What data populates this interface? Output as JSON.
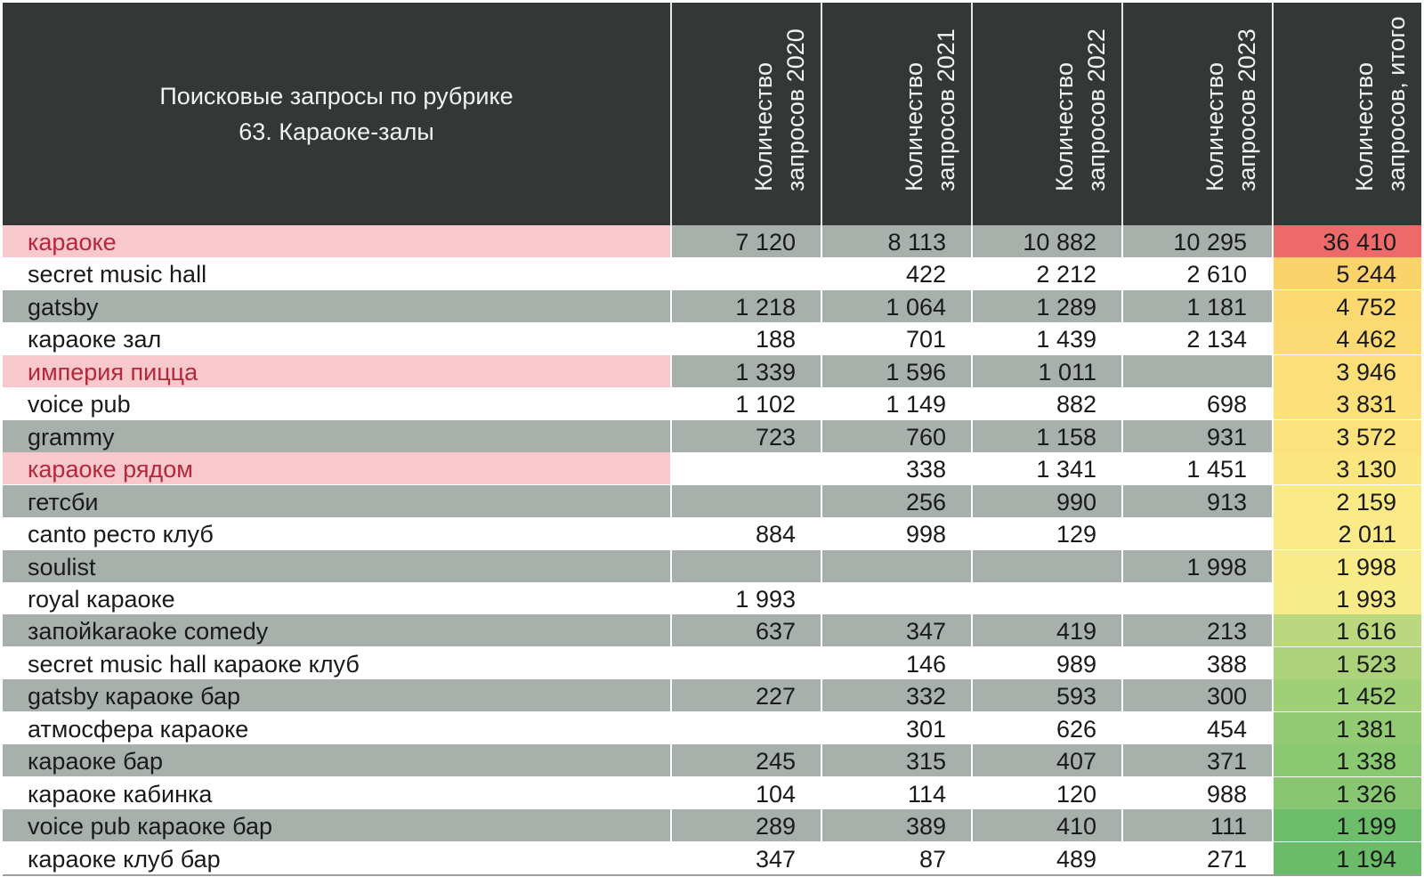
{
  "chart_data": {
    "type": "table",
    "title_lines": [
      "Поисковые запросы по рубрике",
      "63. Караоке-залы"
    ],
    "columns": [
      {
        "lines": [
          "Количество",
          "запросов 2020"
        ]
      },
      {
        "lines": [
          "Количество",
          "запросов 2021"
        ]
      },
      {
        "lines": [
          "Количество",
          "запросов 2022"
        ]
      },
      {
        "lines": [
          "Количество",
          "запросов 2023"
        ]
      },
      {
        "lines": [
          "Количество",
          "запросов, итого"
        ]
      }
    ],
    "rows": [
      {
        "name": "караоке",
        "highlight": true,
        "v2020": "7 120",
        "v2021": "8 113",
        "v2022": "10 882",
        "v2023": "10 295",
        "total": "36 410",
        "total_color": "#ee6a6a"
      },
      {
        "name": "secret music hall",
        "highlight": false,
        "v2020": "",
        "v2021": "422",
        "v2022": "2 212",
        "v2023": "2 610",
        "total": "5 244",
        "total_color": "#fbd36b"
      },
      {
        "name": "gatsby",
        "highlight": false,
        "v2020": "1 218",
        "v2021": "1 064",
        "v2022": "1 289",
        "v2023": "1 181",
        "total": "4 752",
        "total_color": "#fcd870"
      },
      {
        "name": "караоке зал",
        "highlight": false,
        "v2020": "188",
        "v2021": "701",
        "v2022": "1 439",
        "v2023": "2 134",
        "total": "4 462",
        "total_color": "#fcdb74"
      },
      {
        "name": "империя пицца",
        "highlight": true,
        "v2020": "1 339",
        "v2021": "1 596",
        "v2022": "1 011",
        "v2023": "",
        "total": "3 946",
        "total_color": "#fcdf78"
      },
      {
        "name": "voice pub",
        "highlight": false,
        "v2020": "1 102",
        "v2021": "1 149",
        "v2022": "882",
        "v2023": "698",
        "total": "3 831",
        "total_color": "#fce07a"
      },
      {
        "name": "grammy",
        "highlight": false,
        "v2020": "723",
        "v2021": "760",
        "v2022": "1 158",
        "v2023": "931",
        "total": "3 572",
        "total_color": "#fbe27c"
      },
      {
        "name": "караоке рядом",
        "highlight": true,
        "v2020": "",
        "v2021": "338",
        "v2022": "1 341",
        "v2023": "1 451",
        "total": "3 130",
        "total_color": "#fbe57f"
      },
      {
        "name": "гетсби",
        "highlight": false,
        "v2020": "",
        "v2021": "256",
        "v2022": "990",
        "v2023": "913",
        "total": "2 159",
        "total_color": "#faea86"
      },
      {
        "name": "canto ресто клуб",
        "highlight": false,
        "v2020": "884",
        "v2021": "998",
        "v2022": "129",
        "v2023": "",
        "total": "2 011",
        "total_color": "#faeb88"
      },
      {
        "name": "soulist",
        "highlight": false,
        "v2020": "",
        "v2021": "",
        "v2022": "",
        "v2023": "1 998",
        "total": "1 998",
        "total_color": "#f9eb88"
      },
      {
        "name": "royal караоке",
        "highlight": false,
        "v2020": "1 993",
        "v2021": "",
        "v2022": "",
        "v2023": "",
        "total": "1 993",
        "total_color": "#f8eb89"
      },
      {
        "name": "запойkaraoke comedy",
        "highlight": false,
        "v2020": "637",
        "v2021": "347",
        "v2022": "419",
        "v2023": "213",
        "total": "1 616",
        "total_color": "#bcd87e"
      },
      {
        "name": "secret music hall караоке клуб",
        "highlight": false,
        "v2020": "",
        "v2021": "146",
        "v2022": "989",
        "v2023": "388",
        "total": "1 523",
        "total_color": "#acd37a"
      },
      {
        "name": "gatsby караоке бар",
        "highlight": false,
        "v2020": "227",
        "v2021": "332",
        "v2022": "593",
        "v2023": "300",
        "total": "1 452",
        "total_color": "#9fcf77"
      },
      {
        "name": "атмосфера караоке",
        "highlight": false,
        "v2020": "",
        "v2021": "301",
        "v2022": "626",
        "v2023": "454",
        "total": "1 381",
        "total_color": "#93cb74"
      },
      {
        "name": "караоке бар",
        "highlight": false,
        "v2020": "245",
        "v2021": "315",
        "v2022": "407",
        "v2023": "371",
        "total": "1 338",
        "total_color": "#8bc872"
      },
      {
        "name": "караоке кабинка",
        "highlight": false,
        "v2020": "104",
        "v2021": "114",
        "v2022": "120",
        "v2023": "988",
        "total": "1 326",
        "total_color": "#88c671"
      },
      {
        "name": "voice pub караоке бар",
        "highlight": false,
        "v2020": "289",
        "v2021": "389",
        "v2022": "410",
        "v2023": "111",
        "total": "1 199",
        "total_color": "#6dbd6a"
      },
      {
        "name": "караоке клуб бар",
        "highlight": false,
        "v2020": "347",
        "v2021": "87",
        "v2022": "489",
        "v2023": "271",
        "total": "1 194",
        "total_color": "#6abc69"
      }
    ],
    "colors": {
      "header_bg": "#333836",
      "band_gray": "#a8b0ac",
      "band_white": "#ffffff",
      "highlight_bg": "#f8c8cc",
      "highlight_text": "#b3283a"
    }
  }
}
